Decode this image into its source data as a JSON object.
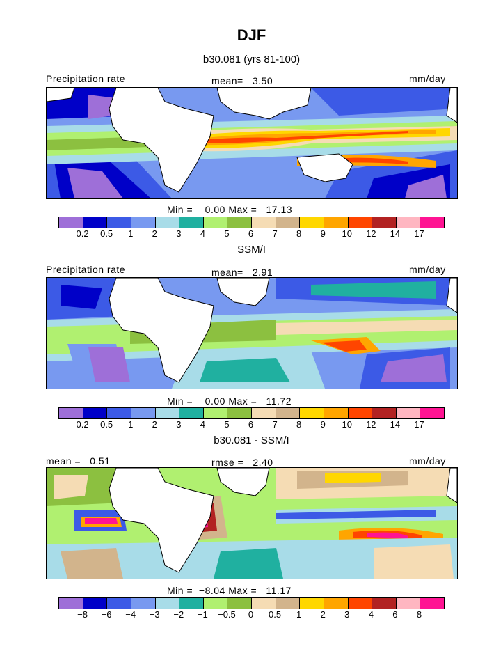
{
  "figure": {
    "title": "DJF",
    "panels": [
      {
        "id": "model",
        "subtitle": "b30.081 (yrs 81-100)",
        "left_label": "Precipitation rate",
        "center_label": "mean=   3.50",
        "right_label": "mm/day",
        "stats": "Min =    0.00 Max =   17.13",
        "colorbar_colors": [
          "#9e6fd8",
          "#0000c8",
          "#3c5ae6",
          "#7899f0",
          "#a8dce8",
          "#20b0a0",
          "#b0f070",
          "#8cc040",
          "#f5dcb4",
          "#d2b48c",
          "#ffd700",
          "#ffa500",
          "#ff4500",
          "#b22222",
          "#ffb6c1",
          "#ff1493"
        ],
        "colorbar_ticks": [
          "0.2",
          "0.5",
          "1",
          "2",
          "3",
          "4",
          "5",
          "6",
          "7",
          "8",
          "9",
          "10",
          "12",
          "14",
          "17"
        ]
      },
      {
        "id": "obs",
        "subtitle": "SSM/I",
        "left_label": "Precipitation rate",
        "center_label": "mean=   2.91",
        "right_label": "mm/day",
        "stats": "Min =    0.00 Max =   11.72",
        "colorbar_colors": [
          "#9e6fd8",
          "#0000c8",
          "#3c5ae6",
          "#7899f0",
          "#a8dce8",
          "#20b0a0",
          "#b0f070",
          "#8cc040",
          "#f5dcb4",
          "#d2b48c",
          "#ffd700",
          "#ffa500",
          "#ff4500",
          "#b22222",
          "#ffb6c1",
          "#ff1493"
        ],
        "colorbar_ticks": [
          "0.2",
          "0.5",
          "1",
          "2",
          "3",
          "4",
          "5",
          "6",
          "7",
          "8",
          "9",
          "10",
          "12",
          "14",
          "17"
        ]
      },
      {
        "id": "diff",
        "subtitle": "b30.081 - SSM/I",
        "left_label": "mean =   0.51",
        "center_label": "rmse =   2.40",
        "right_label": "mm/day",
        "stats": "Min =  −8.04 Max =   11.17",
        "colorbar_colors": [
          "#9e6fd8",
          "#0000c8",
          "#3c5ae6",
          "#7899f0",
          "#a8dce8",
          "#20b0a0",
          "#b0f070",
          "#8cc040",
          "#f5dcb4",
          "#d2b48c",
          "#ffd700",
          "#ffa500",
          "#ff4500",
          "#b22222",
          "#ffb6c1",
          "#ff1493"
        ],
        "colorbar_ticks": [
          "−8",
          "−6",
          "−4",
          "−3",
          "−2",
          "−1",
          "−0.5",
          "0",
          "0.5",
          "1",
          "2",
          "3",
          "4",
          "6",
          "8"
        ]
      }
    ]
  }
}
